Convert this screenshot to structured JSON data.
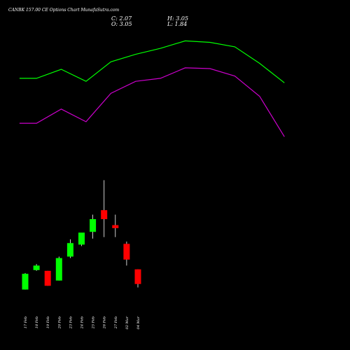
{
  "header": {
    "title": "CANBK 157.00 CE Options Chart MunafaSutra.com",
    "close_label": "C: 2.07",
    "open_label": "O: 3.05",
    "high_label": "H: 3.05",
    "low_label": "L: 1.84"
  },
  "chart_data": {
    "type": "candlestick",
    "title": "CANBK 157.00 CE Options Chart MunafaSutra.com",
    "categories": [
      "17 Feb",
      "18 Feb",
      "19 Feb",
      "20 Feb",
      "23 Feb",
      "24 Feb",
      "25 Feb",
      "26 Feb",
      "27 Feb",
      "02 Mar",
      "04 Mar"
    ],
    "tick_labels": [
      "17 Feb",
      "18 Feb",
      "19 Feb",
      "20 Feb",
      "23 Feb",
      "24 Feb",
      "25 Feb",
      "26 Feb",
      "27 Feb",
      "02 Mar",
      "04 Mar"
    ],
    "candles": [
      {
        "open": 1.7,
        "high": 2.8,
        "low": 1.7,
        "close": 2.75,
        "color": "green"
      },
      {
        "open": 3.0,
        "high": 3.4,
        "low": 2.95,
        "close": 3.3,
        "color": "green"
      },
      {
        "open": 2.95,
        "high": 2.95,
        "low": 1.95,
        "close": 1.95,
        "color": "red"
      },
      {
        "open": 2.3,
        "high": 3.9,
        "low": 2.3,
        "close": 3.8,
        "color": "green"
      },
      {
        "open": 3.9,
        "high": 5.05,
        "low": 3.8,
        "close": 4.8,
        "color": "green"
      },
      {
        "open": 4.7,
        "high": 5.45,
        "low": 4.6,
        "close": 5.5,
        "color": "green"
      },
      {
        "open": 5.55,
        "high": 6.7,
        "low": 5.1,
        "close": 6.4,
        "color": "green"
      },
      {
        "open": 7.0,
        "high": 9.0,
        "low": 5.2,
        "close": 6.4,
        "color": "red"
      },
      {
        "open": 6.0,
        "high": 6.7,
        "low": 5.2,
        "close": 5.8,
        "color": "red"
      },
      {
        "open": 4.75,
        "high": 4.9,
        "low": 3.3,
        "close": 3.7,
        "color": "red"
      },
      {
        "open": 3.05,
        "high": 3.05,
        "low": 1.84,
        "close": 2.07,
        "color": "red"
      }
    ],
    "upper_band": [
      {
        "x": -0.5,
        "y": 15.8
      },
      {
        "x": 1.0,
        "y": 15.8
      },
      {
        "x": 3.2,
        "y": 16.4
      },
      {
        "x": 5.4,
        "y": 15.6
      },
      {
        "x": 7.6,
        "y": 16.9
      },
      {
        "x": 9.8,
        "y": 17.4
      },
      {
        "x": 12.0,
        "y": 17.8
      },
      {
        "x": 14.2,
        "y": 18.3
      },
      {
        "x": 16.4,
        "y": 18.2
      },
      {
        "x": 18.6,
        "y": 17.9
      },
      {
        "x": 20.8,
        "y": 16.8
      },
      {
        "x": 23.0,
        "y": 15.5
      }
    ],
    "lower_band": [
      {
        "x": -0.5,
        "y": 12.8
      },
      {
        "x": 1.0,
        "y": 12.8
      },
      {
        "x": 3.2,
        "y": 13.75
      },
      {
        "x": 5.4,
        "y": 12.9
      },
      {
        "x": 7.6,
        "y": 14.8
      },
      {
        "x": 9.8,
        "y": 15.6
      },
      {
        "x": 12.0,
        "y": 15.8
      },
      {
        "x": 14.2,
        "y": 16.5
      },
      {
        "x": 16.4,
        "y": 16.45
      },
      {
        "x": 18.6,
        "y": 15.95
      },
      {
        "x": 20.8,
        "y": 14.6
      },
      {
        "x": 23.0,
        "y": 11.9
      }
    ],
    "colors": {
      "background": "#000000",
      "up": "#00ff00",
      "down": "#ff0000",
      "upper_band": "#00ff00",
      "lower_band": "#cc00cc",
      "wick": "#ffffff",
      "text": "#ffffff"
    },
    "grid": false,
    "legend": "none"
  }
}
